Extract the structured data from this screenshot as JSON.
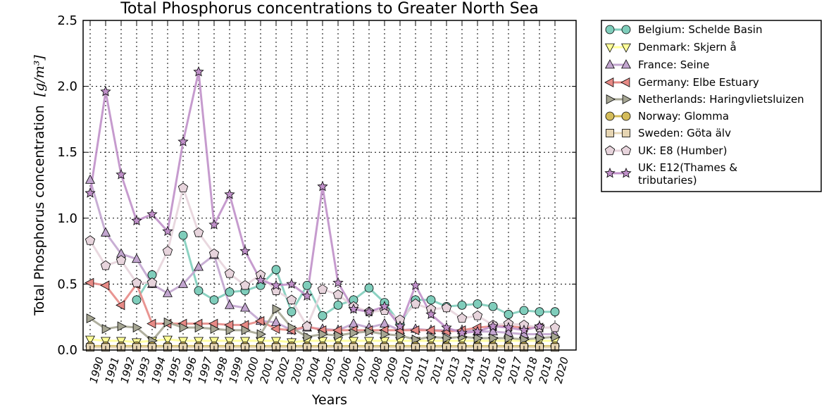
{
  "chart_data": {
    "type": "line",
    "title": "Total Phosphorus concentrations to Greater North Sea",
    "xlabel": "Years",
    "ylabel": "Total Phosphorus concentration",
    "ylabel_unit": "[g/m³]",
    "ylim": [
      0,
      2.5
    ],
    "yticks": [
      "0.0",
      "0.5",
      "1.0",
      "1.5",
      "2.0",
      "2.5"
    ],
    "x": [
      "1990",
      "1991",
      "1992",
      "1993",
      "1994",
      "1995",
      "1996",
      "1997",
      "1998",
      "1999",
      "2000",
      "2001",
      "2002",
      "2003",
      "2004",
      "2005",
      "2006",
      "2007",
      "2008",
      "2009",
      "2010",
      "2011",
      "2012",
      "2013",
      "2014",
      "2015",
      "2016",
      "2017",
      "2018",
      "2019",
      "2020"
    ],
    "grid": true,
    "legend_position": "outside-right",
    "series": [
      {
        "name": "Belgium: Schelde Basin",
        "color": "#7fcdbb",
        "marker": "circle",
        "values": [
          null,
          null,
          null,
          0.38,
          0.57,
          null,
          0.87,
          0.45,
          0.38,
          0.44,
          0.45,
          0.49,
          0.61,
          0.29,
          0.49,
          0.26,
          0.34,
          0.38,
          0.47,
          0.36,
          0.2,
          0.38,
          0.38,
          0.33,
          0.34,
          0.35,
          0.33,
          0.27,
          0.3,
          0.29,
          0.29
        ]
      },
      {
        "name": "Denmark: Skjern å",
        "color": "#ffff99",
        "marker": "triangle-down",
        "values": [
          0.08,
          0.07,
          0.07,
          0.06,
          0.07,
          0.08,
          0.07,
          0.07,
          0.07,
          0.07,
          0.07,
          0.07,
          0.07,
          0.06,
          0.07,
          0.07,
          0.07,
          0.07,
          0.07,
          0.07,
          0.07,
          0.07,
          0.07,
          0.07,
          0.07,
          0.07,
          0.07,
          0.07,
          0.07,
          0.07,
          0.07
        ]
      },
      {
        "name": "France: Seine",
        "color": "#c2a5cf",
        "marker": "triangle-up",
        "values": [
          1.29,
          0.89,
          0.73,
          0.69,
          0.5,
          0.43,
          0.5,
          0.63,
          0.72,
          0.34,
          0.32,
          0.22,
          0.21,
          0.15,
          0.17,
          0.16,
          0.15,
          0.2,
          0.17,
          0.2,
          0.15,
          0.16,
          0.15,
          0.15,
          0.15,
          0.14,
          0.14,
          0.13,
          0.12,
          0.12,
          0.12
        ]
      },
      {
        "name": "Germany: Elbe Estuary",
        "color": "#e78a86",
        "marker": "triangle-left",
        "values": [
          0.51,
          0.49,
          0.34,
          0.5,
          0.2,
          0.2,
          0.2,
          0.2,
          0.2,
          0.19,
          0.19,
          0.22,
          0.16,
          0.15,
          0.18,
          0.15,
          0.15,
          0.15,
          0.15,
          0.15,
          0.15,
          0.15,
          0.15,
          0.14,
          0.15,
          0.17,
          0.18,
          0.18,
          0.17,
          0.17,
          null
        ]
      },
      {
        "name": "Netherlands: Haringvlietsluizen",
        "color": "#a6a693",
        "marker": "triangle-right",
        "values": [
          0.24,
          0.16,
          0.18,
          0.17,
          0.07,
          0.21,
          0.17,
          0.17,
          0.16,
          0.15,
          0.15,
          0.12,
          0.31,
          0.17,
          0.1,
          0.12,
          0.11,
          0.13,
          0.14,
          0.12,
          0.11,
          0.08,
          0.1,
          0.09,
          0.1,
          0.09,
          0.09,
          0.09,
          0.08,
          0.09,
          0.1
        ]
      },
      {
        "name": "Norway: Glomma",
        "color": "#d4bc5a",
        "marker": "circle",
        "values": [
          0.03,
          0.03,
          0.03,
          0.03,
          0.03,
          0.03,
          0.03,
          0.03,
          0.03,
          0.03,
          0.03,
          0.03,
          0.03,
          0.03,
          0.03,
          0.03,
          0.03,
          0.03,
          0.03,
          0.03,
          0.03,
          0.03,
          0.03,
          0.03,
          0.03,
          0.03,
          0.03,
          0.03,
          0.03,
          0.03,
          0.03
        ]
      },
      {
        "name": "Sweden: Göta älv",
        "color": "#e6d5b3",
        "marker": "square",
        "values": [
          0.02,
          0.02,
          0.02,
          0.02,
          0.02,
          0.02,
          0.02,
          0.02,
          0.02,
          0.02,
          0.02,
          0.02,
          0.02,
          0.02,
          0.02,
          0.02,
          0.02,
          0.02,
          0.02,
          0.02,
          0.02,
          0.02,
          0.02,
          0.02,
          0.02,
          0.02,
          0.02,
          0.02,
          0.02,
          0.02,
          0.02
        ]
      },
      {
        "name": "UK: E8 (Humber)",
        "color": "#e7d4dc",
        "marker": "pentagon",
        "values": [
          0.83,
          0.64,
          0.68,
          0.51,
          0.51,
          0.75,
          1.23,
          0.89,
          0.73,
          0.58,
          0.49,
          0.57,
          0.45,
          0.38,
          0.18,
          0.46,
          0.42,
          0.33,
          0.29,
          0.3,
          0.23,
          0.35,
          0.31,
          0.32,
          0.24,
          0.26,
          0.19,
          0.2,
          0.19,
          0.17,
          0.17
        ]
      },
      {
        "name": "UK: E12(Thames & tributaries)",
        "color": "#c090c9",
        "marker": "star",
        "values": [
          1.19,
          1.96,
          1.33,
          0.98,
          1.03,
          0.9,
          1.58,
          2.11,
          0.95,
          1.18,
          0.75,
          0.53,
          0.49,
          0.5,
          0.41,
          1.24,
          0.51,
          0.31,
          0.29,
          0.33,
          0.18,
          0.49,
          0.27,
          0.17,
          0.13,
          0.14,
          0.18,
          0.17,
          0.15,
          0.18,
          null
        ]
      }
    ]
  }
}
